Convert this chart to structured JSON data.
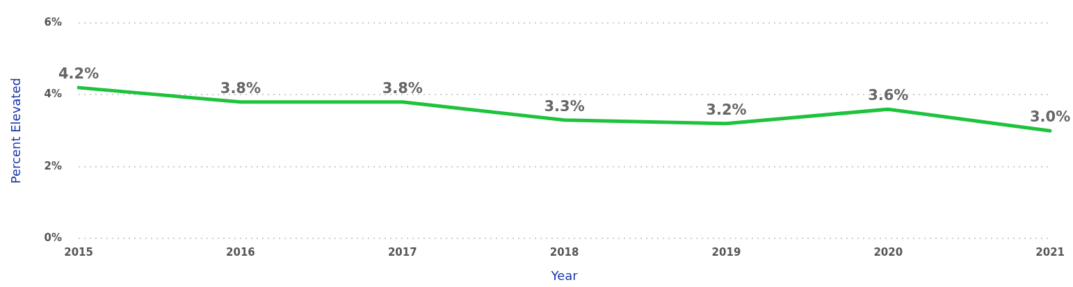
{
  "chart_data": {
    "type": "line",
    "xlabel": "Year",
    "ylabel": "Percent Elevated",
    "categories": [
      "2015",
      "2016",
      "2017",
      "2018",
      "2019",
      "2020",
      "2021"
    ],
    "series": [
      {
        "color": "#1ec23c",
        "values": [
          4.2,
          3.8,
          3.8,
          3.3,
          3.2,
          3.6,
          3.0
        ],
        "value_labels": [
          "4.2%",
          "3.8%",
          "3.8%",
          "3.3%",
          "3.2%",
          "3.6%",
          "3.0%"
        ]
      }
    ],
    "ylim": [
      0,
      6
    ],
    "yticks": [
      {
        "value": 0,
        "label": "0%"
      },
      {
        "value": 2,
        "label": "2%"
      },
      {
        "value": 4,
        "label": "4%"
      },
      {
        "value": 6,
        "label": "6%"
      }
    ],
    "grid": "y",
    "legend": false,
    "marker": "none",
    "line_style": "solid"
  }
}
